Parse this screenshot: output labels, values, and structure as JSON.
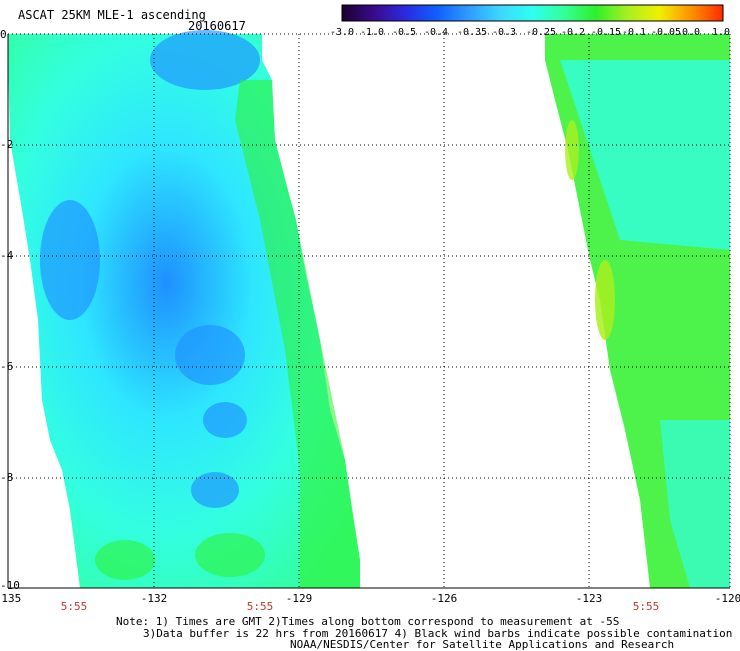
{
  "title": "ASCAT 25KM MLE-1 ascending",
  "date": "20160617",
  "colorbar": {
    "labels": [
      "-3.0",
      "-1.0",
      "-0.5",
      "-0.4",
      "-0.35",
      "-0.3",
      "-0.25",
      "-0.2",
      "-0.15",
      "-0.1",
      "-0.05",
      "0.0",
      "1.0"
    ],
    "colors": [
      "#1a0030",
      "#3a0a8a",
      "#2a2ae0",
      "#1060ff",
      "#2f9cff",
      "#3cd8ff",
      "#2efff0",
      "#33ff99",
      "#2ef02a",
      "#a8f020",
      "#f0f000",
      "#ff9000",
      "#ff2a00"
    ]
  },
  "map": {
    "lon_range": [
      -135,
      -120
    ],
    "lat_range": [
      -10,
      0
    ],
    "lon_ticks": [
      "-135",
      "-132",
      "-129",
      "-126",
      "-123",
      "-120"
    ],
    "lat_ticks": [
      "0",
      "-2",
      "-4",
      "-6",
      "-8",
      "-10"
    ],
    "time_labels": [
      "5:55",
      "5:55",
      "5:55"
    ],
    "swaths": [
      {
        "name": "swath-west",
        "colors": [
          "#33ffe0",
          "#2ee6ff",
          "#1e90ff",
          "#33ff99",
          "#2ef02a"
        ]
      },
      {
        "name": "swath-east",
        "colors": [
          "#33ffe0",
          "#2ef02a",
          "#33ff99",
          "#a8f020"
        ]
      }
    ]
  },
  "notes": [
    "Note: 1) Times are GMT 2)Times along bottom correspond to measurement at -5S",
    "3)Data buffer is 22 hrs from 20160617 4) Black wind barbs indicate possible contamination",
    "NOAA/NESDIS/Center for Satellite Applications and Research"
  ]
}
